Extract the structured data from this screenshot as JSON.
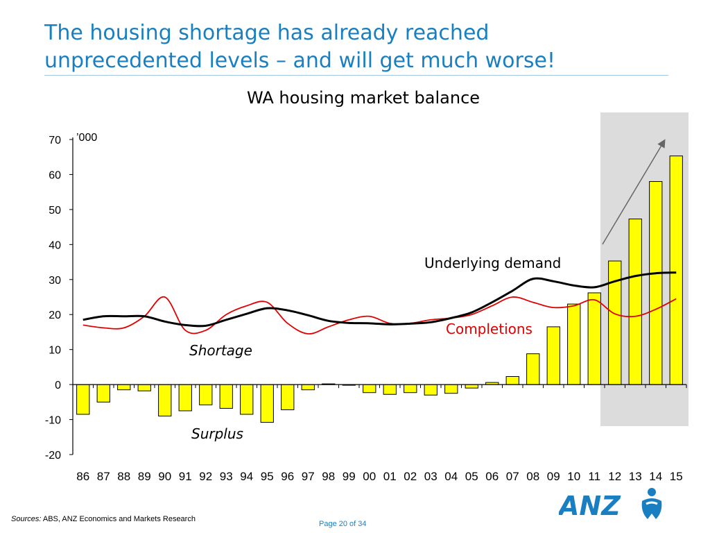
{
  "slide": {
    "title_line1": "The housing shortage has already reached",
    "title_line2": "unprecedented levels – and will get much worse!",
    "sources_label": "Sources:",
    "sources_text": " ABS, ANZ Economics and Markets Research",
    "page": "Page 20 of 34",
    "logo_text": "ANZ"
  },
  "colors": {
    "accent": "#1a7fc1",
    "bar_fill": "#ffff00",
    "completions_line": "#e00000",
    "demand_line": "#000000",
    "forecast_shading": "#dcdcdc"
  },
  "chart_data": {
    "type": "bar",
    "title": "WA housing market balance",
    "ylabel": "’000",
    "ylim": [
      -20,
      70
    ],
    "yticks": [
      70,
      60,
      50,
      40,
      30,
      20,
      10,
      0,
      -10,
      -20
    ],
    "grid": false,
    "categories": [
      "86",
      "87",
      "88",
      "89",
      "90",
      "91",
      "92",
      "93",
      "94",
      "95",
      "96",
      "97",
      "98",
      "99",
      "00",
      "01",
      "02",
      "03",
      "04",
      "05",
      "06",
      "07",
      "08",
      "09",
      "10",
      "11",
      "12",
      "13",
      "14",
      "15"
    ],
    "forecast_shaded_categories": [
      "12",
      "13",
      "14",
      "15"
    ],
    "series": [
      {
        "kind": "bar",
        "values": [
          -8.5,
          -5,
          -1.5,
          -1.8,
          -9,
          -7.5,
          -5.8,
          -6.8,
          -8.5,
          -10.8,
          -7.2,
          -1.5,
          0.2,
          0,
          -2.3,
          -2.8,
          -2.3,
          -3,
          -2.5,
          -1,
          0.6,
          2.3,
          8.8,
          16.5,
          23,
          26.2,
          35.3,
          47.3,
          58,
          65.3
        ]
      },
      {
        "kind": "line",
        "name": "Completions",
        "values": [
          17,
          16.2,
          16.2,
          19.5,
          25,
          15.5,
          15.5,
          20,
          22.5,
          23.5,
          17.5,
          14.5,
          16.5,
          18.5,
          19.5,
          17.5,
          17.5,
          18.5,
          19,
          20,
          22.5,
          25,
          23.5,
          22,
          22.5,
          24.2,
          20.2,
          19.5,
          21.5,
          24.5
        ]
      },
      {
        "kind": "line",
        "name": "Underlying demand",
        "values": [
          18.5,
          19.5,
          19.5,
          19.5,
          18,
          17,
          16.8,
          18.5,
          20.2,
          21.8,
          21.2,
          19.8,
          18.2,
          17.6,
          17.5,
          17.2,
          17.4,
          17.8,
          19,
          20.6,
          23.5,
          26.8,
          30.2,
          29.5,
          28.3,
          27.8,
          29.5,
          31,
          31.8,
          32
        ]
      }
    ],
    "annotations": [
      "Shortage",
      "Surplus"
    ]
  }
}
